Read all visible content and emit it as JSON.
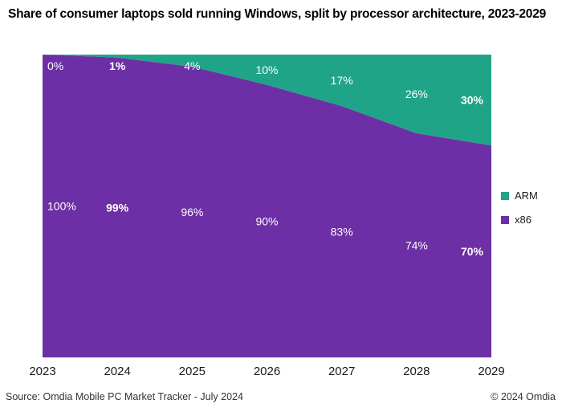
{
  "title": "Share of consumer laptops sold running Windows, split by processor architecture, 2023-2029",
  "footer": {
    "source": "Source: Omdia Mobile PC Market Tracker - July 2024",
    "copyright": "© 2024 Omdia"
  },
  "legend": {
    "items": [
      {
        "label": "ARM",
        "color": "#20A487"
      },
      {
        "label": "x86",
        "color": "#6D2FA5"
      }
    ]
  },
  "chart_data": {
    "type": "area",
    "stacked": true,
    "percent_stacked": true,
    "title": "Share of consumer laptops sold running Windows, split by processor architecture, 2023-2029",
    "categories": [
      "2023",
      "2024",
      "2025",
      "2026",
      "2027",
      "2028",
      "2029"
    ],
    "series": [
      {
        "name": "ARM",
        "color": "#20A487",
        "values": [
          0,
          1,
          4,
          10,
          17,
          26,
          30
        ],
        "labels": [
          "0%",
          "1%",
          "4%",
          "10%",
          "17%",
          "26%",
          "30%"
        ]
      },
      {
        "name": "x86",
        "color": "#6D2FA5",
        "values": [
          100,
          99,
          96,
          90,
          83,
          74,
          70
        ],
        "labels": [
          "100%",
          "99%",
          "96%",
          "90%",
          "83%",
          "74%",
          "70%"
        ]
      }
    ],
    "bold_label_indices": [
      1,
      6
    ],
    "label_color": "#FFFFFF",
    "axis_label_color": "#1a1a1a",
    "ylim": [
      0,
      100
    ],
    "grid": false,
    "legend_position": "right"
  }
}
